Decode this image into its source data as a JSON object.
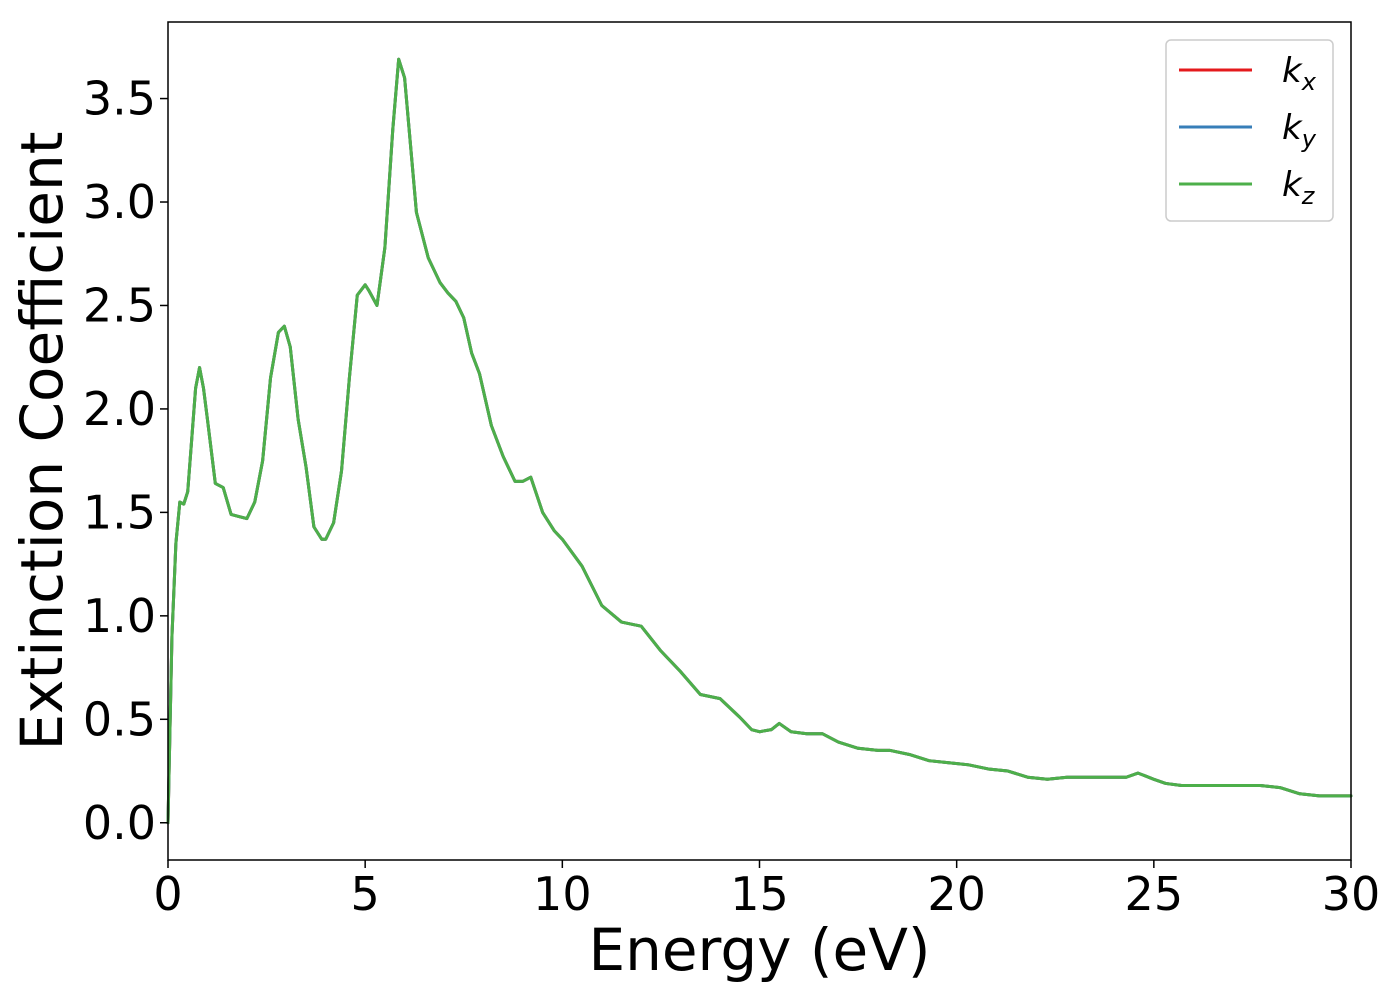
{
  "chart_data": {
    "type": "line",
    "title": "",
    "xlabel": "Energy (eV)",
    "ylabel": "Extinction Coefficient",
    "xlim": [
      0,
      30
    ],
    "ylim": [
      -0.18,
      3.87
    ],
    "xticks": [
      0,
      5,
      10,
      15,
      20,
      25,
      30
    ],
    "xtick_labels": [
      "0",
      "5",
      "10",
      "15",
      "20",
      "25",
      "30"
    ],
    "yticks": [
      0.0,
      0.5,
      1.0,
      1.5,
      2.0,
      2.5,
      3.0,
      3.5
    ],
    "ytick_labels": [
      "0.0",
      "0.5",
      "1.0",
      "1.5",
      "2.0",
      "2.5",
      "3.0",
      "3.5"
    ],
    "grid": false,
    "legend_position": "top-right",
    "series": [
      {
        "name": "k_x",
        "label_base": "k",
        "label_sub": "x",
        "color": "#e41a1c",
        "x": [
          0,
          0.1,
          0.2,
          0.3,
          0.4,
          0.5,
          0.6,
          0.7,
          0.8,
          0.9,
          1.0,
          1.2,
          1.4,
          1.6,
          1.8,
          2.0,
          2.2,
          2.4,
          2.6,
          2.8,
          2.95,
          3.1,
          3.3,
          3.5,
          3.7,
          3.9,
          4.0,
          4.2,
          4.4,
          4.6,
          4.8,
          5.0,
          5.1,
          5.3,
          5.5,
          5.7,
          5.85,
          6.0,
          6.3,
          6.6,
          6.9,
          7.1,
          7.3,
          7.5,
          7.7,
          7.9,
          8.2,
          8.5,
          8.8,
          9.0,
          9.2,
          9.5,
          9.8,
          10.0,
          10.5,
          11.0,
          11.5,
          12.0,
          12.5,
          13.0,
          13.5,
          14.0,
          14.5,
          14.8,
          15.0,
          15.3,
          15.5,
          15.8,
          16.2,
          16.6,
          17.0,
          17.5,
          18.0,
          18.3,
          18.8,
          19.3,
          19.8,
          20.3,
          20.8,
          21.3,
          21.8,
          22.3,
          22.8,
          23.3,
          23.8,
          24.3,
          24.6,
          25.0,
          25.3,
          25.7,
          26.2,
          26.7,
          27.2,
          27.7,
          28.2,
          28.7,
          29.2,
          29.6,
          30.0
        ],
        "y": [
          0.0,
          0.9,
          1.35,
          1.55,
          1.54,
          1.6,
          1.85,
          2.1,
          2.2,
          2.1,
          1.95,
          1.64,
          1.62,
          1.49,
          1.48,
          1.47,
          1.55,
          1.75,
          2.15,
          2.37,
          2.4,
          2.3,
          1.95,
          1.72,
          1.43,
          1.37,
          1.37,
          1.45,
          1.7,
          2.15,
          2.55,
          2.6,
          2.57,
          2.5,
          2.78,
          3.35,
          3.69,
          3.6,
          2.95,
          2.73,
          2.61,
          2.56,
          2.52,
          2.44,
          2.27,
          2.17,
          1.92,
          1.77,
          1.65,
          1.65,
          1.67,
          1.5,
          1.41,
          1.37,
          1.24,
          1.05,
          0.97,
          0.95,
          0.83,
          0.73,
          0.62,
          0.6,
          0.51,
          0.45,
          0.44,
          0.45,
          0.48,
          0.44,
          0.43,
          0.43,
          0.39,
          0.36,
          0.35,
          0.35,
          0.33,
          0.3,
          0.29,
          0.28,
          0.26,
          0.25,
          0.22,
          0.21,
          0.22,
          0.22,
          0.22,
          0.22,
          0.24,
          0.21,
          0.19,
          0.18,
          0.18,
          0.18,
          0.18,
          0.18,
          0.17,
          0.14,
          0.13,
          0.13,
          0.13
        ]
      },
      {
        "name": "k_y",
        "label_base": "k",
        "label_sub": "y",
        "color": "#377eb8",
        "x": [
          0,
          0.1,
          0.2,
          0.3,
          0.4,
          0.5,
          0.6,
          0.7,
          0.8,
          0.9,
          1.0,
          1.2,
          1.4,
          1.6,
          1.8,
          2.0,
          2.2,
          2.4,
          2.6,
          2.8,
          2.95,
          3.1,
          3.3,
          3.5,
          3.7,
          3.9,
          4.0,
          4.2,
          4.4,
          4.6,
          4.8,
          5.0,
          5.1,
          5.3,
          5.5,
          5.7,
          5.85,
          6.0,
          6.3,
          6.6,
          6.9,
          7.1,
          7.3,
          7.5,
          7.7,
          7.9,
          8.2,
          8.5,
          8.8,
          9.0,
          9.2,
          9.5,
          9.8,
          10.0,
          10.5,
          11.0,
          11.5,
          12.0,
          12.5,
          13.0,
          13.5,
          14.0,
          14.5,
          14.8,
          15.0,
          15.3,
          15.5,
          15.8,
          16.2,
          16.6,
          17.0,
          17.5,
          18.0,
          18.3,
          18.8,
          19.3,
          19.8,
          20.3,
          20.8,
          21.3,
          21.8,
          22.3,
          22.8,
          23.3,
          23.8,
          24.3,
          24.6,
          25.0,
          25.3,
          25.7,
          26.2,
          26.7,
          27.2,
          27.7,
          28.2,
          28.7,
          29.2,
          29.6,
          30.0
        ],
        "y": [
          0.0,
          0.9,
          1.35,
          1.55,
          1.54,
          1.6,
          1.85,
          2.1,
          2.2,
          2.1,
          1.95,
          1.64,
          1.62,
          1.49,
          1.48,
          1.47,
          1.55,
          1.75,
          2.15,
          2.37,
          2.4,
          2.3,
          1.95,
          1.72,
          1.43,
          1.37,
          1.37,
          1.45,
          1.7,
          2.15,
          2.55,
          2.6,
          2.57,
          2.5,
          2.78,
          3.35,
          3.69,
          3.6,
          2.95,
          2.73,
          2.61,
          2.56,
          2.52,
          2.44,
          2.27,
          2.17,
          1.92,
          1.77,
          1.65,
          1.65,
          1.67,
          1.5,
          1.41,
          1.37,
          1.24,
          1.05,
          0.97,
          0.95,
          0.83,
          0.73,
          0.62,
          0.6,
          0.51,
          0.45,
          0.44,
          0.45,
          0.48,
          0.44,
          0.43,
          0.43,
          0.39,
          0.36,
          0.35,
          0.35,
          0.33,
          0.3,
          0.29,
          0.28,
          0.26,
          0.25,
          0.22,
          0.21,
          0.22,
          0.22,
          0.22,
          0.22,
          0.24,
          0.21,
          0.19,
          0.18,
          0.18,
          0.18,
          0.18,
          0.18,
          0.17,
          0.14,
          0.13,
          0.13,
          0.13
        ]
      },
      {
        "name": "k_z",
        "label_base": "k",
        "label_sub": "z",
        "color": "#4daf4a",
        "x": [
          0,
          0.1,
          0.2,
          0.3,
          0.4,
          0.5,
          0.6,
          0.7,
          0.8,
          0.9,
          1.0,
          1.2,
          1.4,
          1.6,
          1.8,
          2.0,
          2.2,
          2.4,
          2.6,
          2.8,
          2.95,
          3.1,
          3.3,
          3.5,
          3.7,
          3.9,
          4.0,
          4.2,
          4.4,
          4.6,
          4.8,
          5.0,
          5.1,
          5.3,
          5.5,
          5.7,
          5.85,
          6.0,
          6.3,
          6.6,
          6.9,
          7.1,
          7.3,
          7.5,
          7.7,
          7.9,
          8.2,
          8.5,
          8.8,
          9.0,
          9.2,
          9.5,
          9.8,
          10.0,
          10.5,
          11.0,
          11.5,
          12.0,
          12.5,
          13.0,
          13.5,
          14.0,
          14.5,
          14.8,
          15.0,
          15.3,
          15.5,
          15.8,
          16.2,
          16.6,
          17.0,
          17.5,
          18.0,
          18.3,
          18.8,
          19.3,
          19.8,
          20.3,
          20.8,
          21.3,
          21.8,
          22.3,
          22.8,
          23.3,
          23.8,
          24.3,
          24.6,
          25.0,
          25.3,
          25.7,
          26.2,
          26.7,
          27.2,
          27.7,
          28.2,
          28.7,
          29.2,
          29.6,
          30.0
        ],
        "y": [
          0.0,
          0.9,
          1.35,
          1.55,
          1.54,
          1.6,
          1.85,
          2.1,
          2.2,
          2.1,
          1.95,
          1.64,
          1.62,
          1.49,
          1.48,
          1.47,
          1.55,
          1.75,
          2.15,
          2.37,
          2.4,
          2.3,
          1.95,
          1.72,
          1.43,
          1.37,
          1.37,
          1.45,
          1.7,
          2.15,
          2.55,
          2.6,
          2.57,
          2.5,
          2.78,
          3.35,
          3.69,
          3.6,
          2.95,
          2.73,
          2.61,
          2.56,
          2.52,
          2.44,
          2.27,
          2.17,
          1.92,
          1.77,
          1.65,
          1.65,
          1.67,
          1.5,
          1.41,
          1.37,
          1.24,
          1.05,
          0.97,
          0.95,
          0.83,
          0.73,
          0.62,
          0.6,
          0.51,
          0.45,
          0.44,
          0.45,
          0.48,
          0.44,
          0.43,
          0.43,
          0.39,
          0.36,
          0.35,
          0.35,
          0.33,
          0.3,
          0.29,
          0.28,
          0.26,
          0.25,
          0.22,
          0.21,
          0.22,
          0.22,
          0.22,
          0.22,
          0.24,
          0.21,
          0.19,
          0.18,
          0.18,
          0.18,
          0.18,
          0.18,
          0.17,
          0.14,
          0.13,
          0.13,
          0.13
        ]
      }
    ]
  }
}
